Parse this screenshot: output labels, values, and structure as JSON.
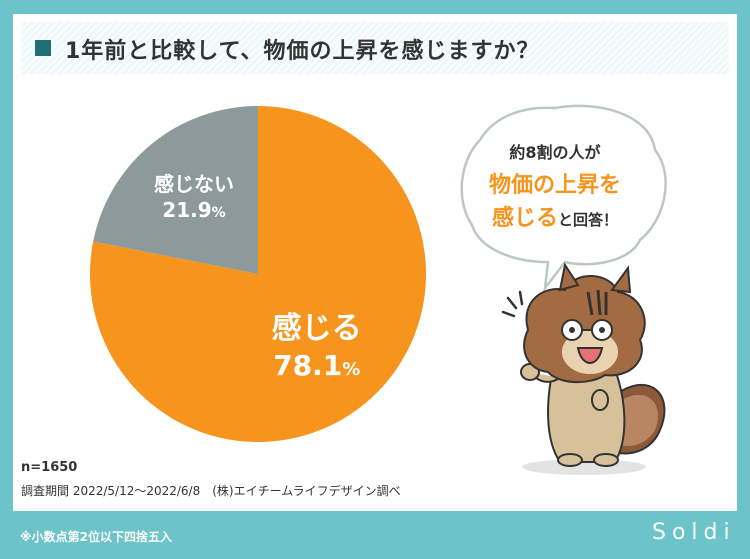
{
  "title": "1年前と比較して、物価の上昇を感じますか？",
  "chart_data": {
    "type": "pie",
    "slices": [
      {
        "label": "感じる",
        "value": 78.1,
        "display": "78.1",
        "color": "#f7941d"
      },
      {
        "label": "感じない",
        "value": 21.9,
        "display": "21.9",
        "color": "#8c9a9c"
      }
    ],
    "unit": "%"
  },
  "meta": {
    "n": "n=1650",
    "period": "調査期間 2022/5/12～2022/6/8　(株)エイチームライフデザイン調べ"
  },
  "bubble": {
    "line1": "約8割の人が",
    "line2": "物価の上昇を",
    "line3_highlight": "感じる",
    "line3_rest": "と回答！"
  },
  "footer_note": "※小数点第2位以下四捨五入",
  "brand": "Soldi",
  "colors": {
    "background": "#6cc3c9",
    "accent": "#f7941d",
    "gray": "#8c9a9c",
    "title_square": "#1f6e74"
  },
  "illustration": "squirrel-icon"
}
